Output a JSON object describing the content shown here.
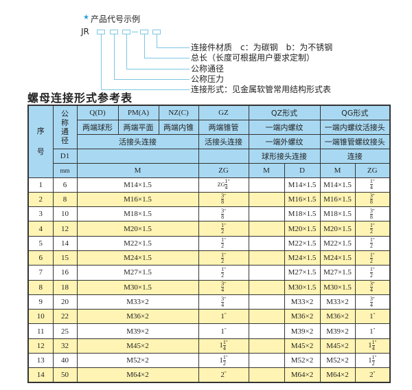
{
  "diagram": {
    "star_icon": "star",
    "title": "产品代号示例",
    "code": "JR",
    "labels": [
      "连接件材质　c：为碳钢　b：为不锈钢",
      "总长（长度可根据用户要求定制）",
      "公称通径",
      "公称压力",
      "连接形式：见金属软管常用结构形式表"
    ],
    "line_color": "#7cc6e4"
  },
  "table_title": "螺母连接形式参考表",
  "colors": {
    "header": "#a9d9f2",
    "alt_row": "#fff4b3"
  },
  "header": {
    "seq": "序号",
    "nominal": "公称通径",
    "d1": "D1",
    "mm": "mm",
    "qd": "Q(D)",
    "pma": "PM(A)",
    "nzc": "NZ(C)",
    "gz": "GZ",
    "qz": "QZ形式",
    "qg": "QG形式",
    "qd2": "两端球形",
    "pma2": "两端平面",
    "nzc2": "两端内锥",
    "gz2": "两端锥管",
    "qz2": "一端内螺纹",
    "qg2": "一端内螺纹活接头",
    "r3a": "活接头连接",
    "r3b": "活接头连接",
    "r3c": "一端外螺纹",
    "r3d": "一端锥管螺纹接头",
    "r4a": "球形接头连接",
    "r4b": "连接",
    "m": "M",
    "zg": "ZG",
    "qzm": "M",
    "qzd": "D",
    "qgm": "M",
    "qgzg": "ZG"
  },
  "rows": [
    {
      "no": "1",
      "dn": "6",
      "m": "M14×1.5",
      "zg": {
        "pre": "ZG",
        "w": "",
        "n": "1",
        "d": "4"
      },
      "d": "M14×1.5",
      "qgm": "M14×1.5"
    },
    {
      "no": "2",
      "dn": "8",
      "m": "M16×1.5",
      "zg": {
        "pre": "",
        "w": "",
        "n": "3",
        "d": "8"
      },
      "d": "M16×1.5",
      "qgm": "M16×1.5"
    },
    {
      "no": "3",
      "dn": "10",
      "m": "M18×1.5",
      "zg": {
        "pre": "",
        "w": "",
        "n": "3",
        "d": "8"
      },
      "d": "M18×1.5",
      "qgm": "M18×1.5"
    },
    {
      "no": "4",
      "dn": "12",
      "m": "M20×1.5",
      "zg": {
        "pre": "",
        "w": "",
        "n": "1",
        "d": "2"
      },
      "d": "M20×1.5",
      "qgm": "M20×1.5"
    },
    {
      "no": "5",
      "dn": "14",
      "m": "M22×1.5",
      "zg": {
        "pre": "",
        "w": "",
        "n": "1",
        "d": "2"
      },
      "d": "M22×1.5",
      "qgm": "M22×1.5"
    },
    {
      "no": "6",
      "dn": "15",
      "m": "M24×1.5",
      "zg": {
        "pre": "",
        "w": "",
        "n": "1",
        "d": "2"
      },
      "d": "M24×1.5",
      "qgm": "M24×1.5"
    },
    {
      "no": "7",
      "dn": "16",
      "m": "M27×1.5",
      "zg": {
        "pre": "",
        "w": "",
        "n": "1",
        "d": "2"
      },
      "d": "M27×1.5",
      "qgm": "M27×1.5"
    },
    {
      "no": "8",
      "dn": "18",
      "m": "M30×1.5",
      "zg": {
        "pre": "",
        "w": "",
        "n": "3",
        "d": "4"
      },
      "d": "M30×1.5",
      "qgm": "M30×1.5"
    },
    {
      "no": "9",
      "dn": "20",
      "m": "M33×2",
      "zg": {
        "pre": "",
        "w": "",
        "n": "3",
        "d": "4"
      },
      "d": "M33×2",
      "qgm": "M33×2"
    },
    {
      "no": "10",
      "dn": "22",
      "m": "M36×2",
      "zg": {
        "pre": "",
        "w": "1",
        "n": "",
        "d": ""
      },
      "d": "M36×2",
      "qgm": "M36×2"
    },
    {
      "no": "11",
      "dn": "25",
      "m": "M39×2",
      "zg": {
        "pre": "",
        "w": "1",
        "n": "",
        "d": ""
      },
      "d": "M39×2",
      "qgm": "M39×2"
    },
    {
      "no": "12",
      "dn": "32",
      "m": "M45×2",
      "zg": {
        "pre": "",
        "w": "1",
        "n": "1",
        "d": "4"
      },
      "d": "M45×2",
      "qgm": "M45×2"
    },
    {
      "no": "13",
      "dn": "40",
      "m": "M52×2",
      "zg": {
        "pre": "",
        "w": "1",
        "n": "1",
        "d": "2"
      },
      "d": "M52×2",
      "qgm": "M52×2"
    },
    {
      "no": "14",
      "dn": "50",
      "m": "M64×2",
      "zg": {
        "pre": "",
        "w": "2",
        "n": "",
        "d": ""
      },
      "d": "M64×2",
      "qgm": "M64×2"
    }
  ]
}
